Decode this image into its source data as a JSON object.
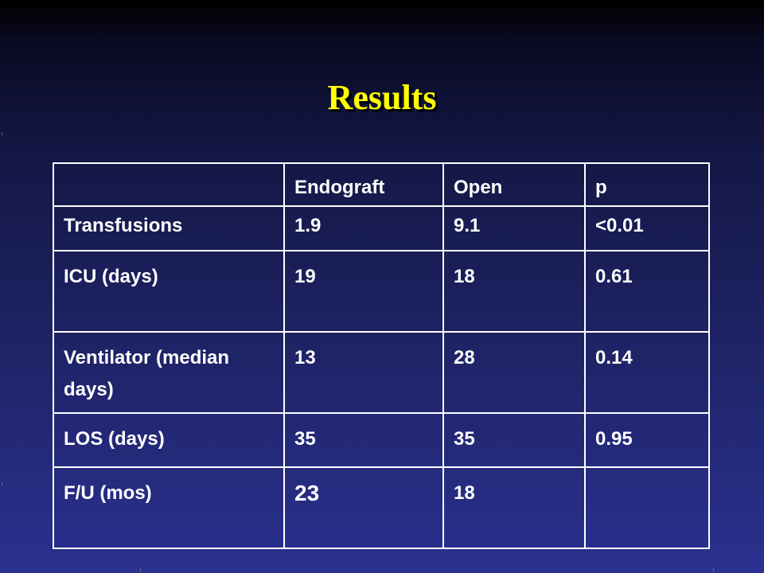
{
  "slide": {
    "title": "Results"
  },
  "table": {
    "header": [
      "",
      "Endograft",
      "Open",
      "p"
    ],
    "rows": [
      {
        "label": "Transfusions",
        "endograft": "1.9",
        "open": "9.1",
        "p": "<0.01"
      },
      {
        "label": "ICU (days)",
        "endograft": "19",
        "open": "18",
        "p": "0.61"
      },
      {
        "label": "Ventilator (median days)",
        "endograft": "13",
        "open": "28",
        "p": "0.14"
      },
      {
        "label": "LOS (days)",
        "endograft": "35",
        "open": "35",
        "p": "0.95"
      },
      {
        "label": "F/U (mos)",
        "endograft": "23",
        "open": "18",
        "p": ""
      }
    ]
  },
  "colors": {
    "title": "#ffff00",
    "text": "#ffffff",
    "background_top": "#000000",
    "background_bottom": "#2a3190"
  }
}
